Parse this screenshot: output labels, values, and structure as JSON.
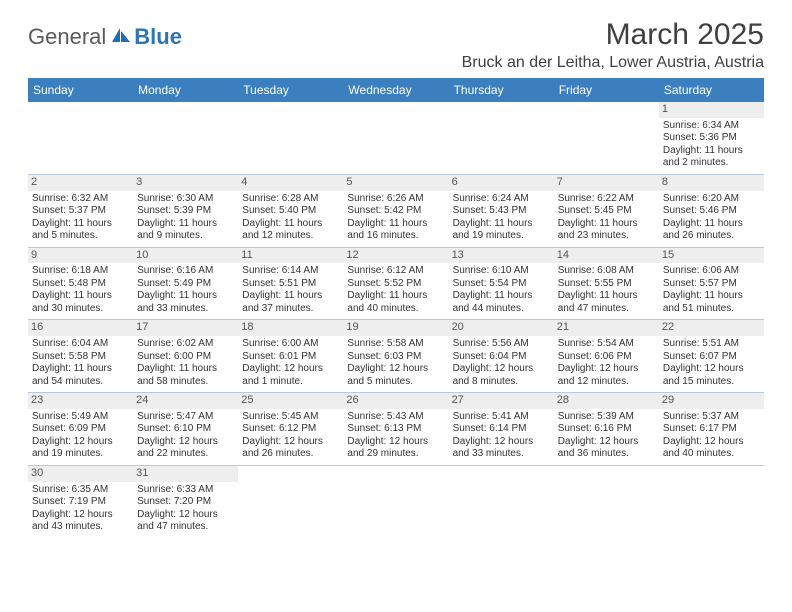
{
  "logo": {
    "general": "General",
    "blue": "Blue"
  },
  "title": "March 2025",
  "location": "Bruck an der Leitha, Lower Austria, Austria",
  "weekdays": [
    "Sunday",
    "Monday",
    "Tuesday",
    "Wednesday",
    "Thursday",
    "Friday",
    "Saturday"
  ],
  "colors": {
    "header_bg": "#3b7fbf",
    "border": "#b8c9de",
    "daynum_bg": "#eeeeee"
  },
  "weeks": [
    [
      null,
      null,
      null,
      null,
      null,
      null,
      {
        "n": "1",
        "sr": "Sunrise: 6:34 AM",
        "ss": "Sunset: 5:36 PM",
        "dl": "Daylight: 11 hours and 2 minutes."
      }
    ],
    [
      {
        "n": "2",
        "sr": "Sunrise: 6:32 AM",
        "ss": "Sunset: 5:37 PM",
        "dl": "Daylight: 11 hours and 5 minutes."
      },
      {
        "n": "3",
        "sr": "Sunrise: 6:30 AM",
        "ss": "Sunset: 5:39 PM",
        "dl": "Daylight: 11 hours and 9 minutes."
      },
      {
        "n": "4",
        "sr": "Sunrise: 6:28 AM",
        "ss": "Sunset: 5:40 PM",
        "dl": "Daylight: 11 hours and 12 minutes."
      },
      {
        "n": "5",
        "sr": "Sunrise: 6:26 AM",
        "ss": "Sunset: 5:42 PM",
        "dl": "Daylight: 11 hours and 16 minutes."
      },
      {
        "n": "6",
        "sr": "Sunrise: 6:24 AM",
        "ss": "Sunset: 5:43 PM",
        "dl": "Daylight: 11 hours and 19 minutes."
      },
      {
        "n": "7",
        "sr": "Sunrise: 6:22 AM",
        "ss": "Sunset: 5:45 PM",
        "dl": "Daylight: 11 hours and 23 minutes."
      },
      {
        "n": "8",
        "sr": "Sunrise: 6:20 AM",
        "ss": "Sunset: 5:46 PM",
        "dl": "Daylight: 11 hours and 26 minutes."
      }
    ],
    [
      {
        "n": "9",
        "sr": "Sunrise: 6:18 AM",
        "ss": "Sunset: 5:48 PM",
        "dl": "Daylight: 11 hours and 30 minutes."
      },
      {
        "n": "10",
        "sr": "Sunrise: 6:16 AM",
        "ss": "Sunset: 5:49 PM",
        "dl": "Daylight: 11 hours and 33 minutes."
      },
      {
        "n": "11",
        "sr": "Sunrise: 6:14 AM",
        "ss": "Sunset: 5:51 PM",
        "dl": "Daylight: 11 hours and 37 minutes."
      },
      {
        "n": "12",
        "sr": "Sunrise: 6:12 AM",
        "ss": "Sunset: 5:52 PM",
        "dl": "Daylight: 11 hours and 40 minutes."
      },
      {
        "n": "13",
        "sr": "Sunrise: 6:10 AM",
        "ss": "Sunset: 5:54 PM",
        "dl": "Daylight: 11 hours and 44 minutes."
      },
      {
        "n": "14",
        "sr": "Sunrise: 6:08 AM",
        "ss": "Sunset: 5:55 PM",
        "dl": "Daylight: 11 hours and 47 minutes."
      },
      {
        "n": "15",
        "sr": "Sunrise: 6:06 AM",
        "ss": "Sunset: 5:57 PM",
        "dl": "Daylight: 11 hours and 51 minutes."
      }
    ],
    [
      {
        "n": "16",
        "sr": "Sunrise: 6:04 AM",
        "ss": "Sunset: 5:58 PM",
        "dl": "Daylight: 11 hours and 54 minutes."
      },
      {
        "n": "17",
        "sr": "Sunrise: 6:02 AM",
        "ss": "Sunset: 6:00 PM",
        "dl": "Daylight: 11 hours and 58 minutes."
      },
      {
        "n": "18",
        "sr": "Sunrise: 6:00 AM",
        "ss": "Sunset: 6:01 PM",
        "dl": "Daylight: 12 hours and 1 minute."
      },
      {
        "n": "19",
        "sr": "Sunrise: 5:58 AM",
        "ss": "Sunset: 6:03 PM",
        "dl": "Daylight: 12 hours and 5 minutes."
      },
      {
        "n": "20",
        "sr": "Sunrise: 5:56 AM",
        "ss": "Sunset: 6:04 PM",
        "dl": "Daylight: 12 hours and 8 minutes."
      },
      {
        "n": "21",
        "sr": "Sunrise: 5:54 AM",
        "ss": "Sunset: 6:06 PM",
        "dl": "Daylight: 12 hours and 12 minutes."
      },
      {
        "n": "22",
        "sr": "Sunrise: 5:51 AM",
        "ss": "Sunset: 6:07 PM",
        "dl": "Daylight: 12 hours and 15 minutes."
      }
    ],
    [
      {
        "n": "23",
        "sr": "Sunrise: 5:49 AM",
        "ss": "Sunset: 6:09 PM",
        "dl": "Daylight: 12 hours and 19 minutes."
      },
      {
        "n": "24",
        "sr": "Sunrise: 5:47 AM",
        "ss": "Sunset: 6:10 PM",
        "dl": "Daylight: 12 hours and 22 minutes."
      },
      {
        "n": "25",
        "sr": "Sunrise: 5:45 AM",
        "ss": "Sunset: 6:12 PM",
        "dl": "Daylight: 12 hours and 26 minutes."
      },
      {
        "n": "26",
        "sr": "Sunrise: 5:43 AM",
        "ss": "Sunset: 6:13 PM",
        "dl": "Daylight: 12 hours and 29 minutes."
      },
      {
        "n": "27",
        "sr": "Sunrise: 5:41 AM",
        "ss": "Sunset: 6:14 PM",
        "dl": "Daylight: 12 hours and 33 minutes."
      },
      {
        "n": "28",
        "sr": "Sunrise: 5:39 AM",
        "ss": "Sunset: 6:16 PM",
        "dl": "Daylight: 12 hours and 36 minutes."
      },
      {
        "n": "29",
        "sr": "Sunrise: 5:37 AM",
        "ss": "Sunset: 6:17 PM",
        "dl": "Daylight: 12 hours and 40 minutes."
      }
    ],
    [
      {
        "n": "30",
        "sr": "Sunrise: 6:35 AM",
        "ss": "Sunset: 7:19 PM",
        "dl": "Daylight: 12 hours and 43 minutes."
      },
      {
        "n": "31",
        "sr": "Sunrise: 6:33 AM",
        "ss": "Sunset: 7:20 PM",
        "dl": "Daylight: 12 hours and 47 minutes."
      },
      null,
      null,
      null,
      null,
      null
    ]
  ]
}
